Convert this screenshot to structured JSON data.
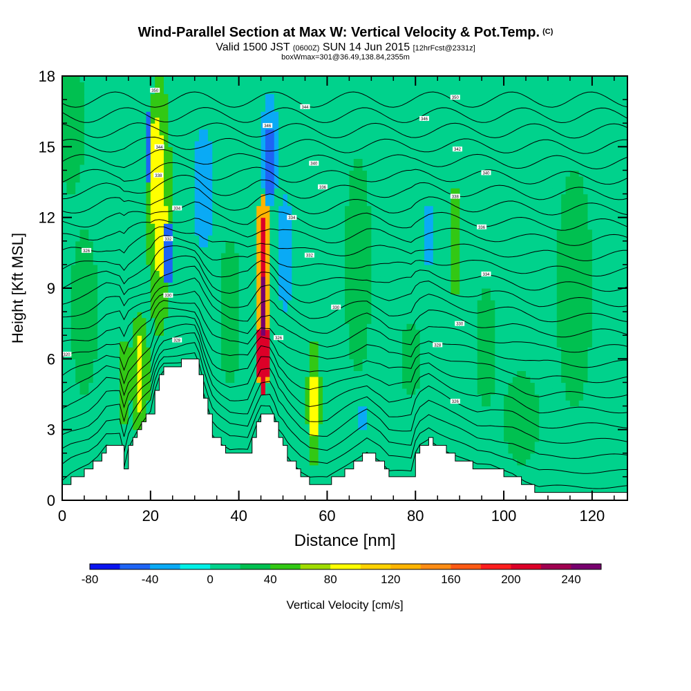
{
  "header": {
    "title": "Wind-Parallel Section at Max W: Vertical Velocity & Pot.Temp.",
    "copyright_mark": "(C)",
    "valid_prefix": "Valid 1500 JST",
    "valid_utc": "(0600Z)",
    "valid_date": "SUN 14 Jun 2015",
    "forecast": "[12hrFcst@2331z]",
    "box_info": "boxWmax=301@36.49,138.84,2355m"
  },
  "chart_data": {
    "type": "heatmap",
    "xlabel": "Distance [nm]",
    "ylabel": "Height [Kft MSL]",
    "xlim": [
      0,
      128
    ],
    "ylim": [
      0,
      18
    ],
    "x_ticks": [
      0,
      20,
      40,
      60,
      80,
      100,
      120
    ],
    "y_ticks": [
      0,
      3,
      6,
      9,
      12,
      15,
      18
    ],
    "colorbar": {
      "label": "Vertical Velocity [cm/s]",
      "min": -80,
      "max": 260,
      "step": 20,
      "tick_labels": [
        "-80",
        "-40",
        "0",
        "40",
        "80",
        "120",
        "160",
        "200",
        "240"
      ],
      "tick_values": [
        -80,
        -40,
        0,
        40,
        80,
        120,
        160,
        200,
        240
      ],
      "colors": [
        "#0a14f0",
        "#1e64f5",
        "#0aaaf5",
        "#00f0e6",
        "#00d28c",
        "#00c050",
        "#32c814",
        "#a0dc00",
        "#ffff00",
        "#ffd200",
        "#ffb400",
        "#ff8c14",
        "#ff5a14",
        "#ff1e1e",
        "#dc0028",
        "#a00050",
        "#78006e"
      ]
    },
    "background_value": 5,
    "terrain": [
      [
        0,
        0.6
      ],
      [
        2,
        0.9
      ],
      [
        6,
        1.3
      ],
      [
        8,
        1.7
      ],
      [
        10,
        2.3
      ],
      [
        13,
        2.3
      ],
      [
        14,
        1.3
      ],
      [
        15,
        2.2
      ],
      [
        16,
        2.6
      ],
      [
        18,
        3.3
      ],
      [
        20,
        3.8
      ],
      [
        21,
        4.8
      ],
      [
        22,
        5.4
      ],
      [
        23,
        5.7
      ],
      [
        28,
        5.9
      ],
      [
        30,
        5.9
      ],
      [
        31,
        5.3
      ],
      [
        32,
        4.3
      ],
      [
        33,
        3.5
      ],
      [
        34,
        2.8
      ],
      [
        35,
        2.5
      ],
      [
        36,
        2.3
      ],
      [
        38,
        2.0
      ],
      [
        42,
        2.0
      ],
      [
        44,
        3.2
      ],
      [
        45,
        3.7
      ],
      [
        47,
        3.7
      ],
      [
        48,
        3.2
      ],
      [
        49,
        2.5
      ],
      [
        50,
        2.2
      ],
      [
        51,
        1.8
      ],
      [
        52,
        1.5
      ],
      [
        54,
        1.0
      ],
      [
        56,
        0.7
      ],
      [
        60,
        0.7
      ],
      [
        62,
        1.0
      ],
      [
        64,
        1.3
      ],
      [
        66,
        1.6
      ],
      [
        69,
        2.0
      ],
      [
        72,
        1.5
      ],
      [
        74,
        1.0
      ],
      [
        79,
        1.0
      ],
      [
        80,
        1.9
      ],
      [
        81,
        2.3
      ],
      [
        83,
        2.6
      ],
      [
        85,
        2.3
      ],
      [
        88,
        1.9
      ],
      [
        91,
        1.6
      ],
      [
        94,
        1.3
      ],
      [
        97,
        1.3
      ],
      [
        102,
        1.0
      ],
      [
        105,
        0.6
      ],
      [
        108,
        0.3
      ],
      [
        112,
        0.3
      ],
      [
        120,
        0.3
      ],
      [
        123,
        0.3
      ]
    ],
    "features": [
      {
        "x": 45.5,
        "y": 8.7,
        "w": 120,
        "rx": 2.0,
        "ry": 4.3
      },
      {
        "x": 45.5,
        "y": 6.2,
        "w": 200,
        "rx": 1.2,
        "ry": 1.8
      },
      {
        "x": 45.5,
        "y": 9.8,
        "w": 200,
        "rx": 0.9,
        "ry": 2.2
      },
      {
        "x": 45.5,
        "y": 8.2,
        "w": 240,
        "rx": 0.6,
        "ry": 1.2
      },
      {
        "x": 21.3,
        "y": 13.8,
        "w": 80,
        "rx": 1.6,
        "ry": 2.4
      },
      {
        "x": 22.3,
        "y": 11.3,
        "w": 80,
        "rx": 1.5,
        "ry": 1.8
      },
      {
        "x": 22.0,
        "y": 12.5,
        "w": 40,
        "rx": 2.8,
        "ry": 5.5
      },
      {
        "x": 17.5,
        "y": 5.4,
        "w": 80,
        "rx": 1.0,
        "ry": 1.6
      },
      {
        "x": 17.5,
        "y": 5.4,
        "w": 40,
        "rx": 2.2,
        "ry": 2.6
      },
      {
        "x": 57.0,
        "y": 4.0,
        "w": 80,
        "rx": 0.9,
        "ry": 1.5
      },
      {
        "x": 57.0,
        "y": 4.2,
        "w": 40,
        "rx": 1.6,
        "ry": 2.8
      },
      {
        "x": 24.0,
        "y": 10.5,
        "w": -60,
        "rx": 0.8,
        "ry": 1.6
      },
      {
        "x": 19.5,
        "y": 15.0,
        "w": -60,
        "rx": 0.8,
        "ry": 1.4
      },
      {
        "x": 47.0,
        "y": 14.3,
        "w": -60,
        "rx": 1.0,
        "ry": 1.6
      },
      {
        "x": 47.0,
        "y": 14.8,
        "w": -40,
        "rx": 2.0,
        "ry": 2.5
      },
      {
        "x": 32.0,
        "y": 13.2,
        "w": -40,
        "rx": 2.5,
        "ry": 2.5
      },
      {
        "x": 50.5,
        "y": 10.5,
        "w": -40,
        "rx": 1.8,
        "ry": 2.4
      },
      {
        "x": 83.0,
        "y": 11.3,
        "w": -40,
        "rx": 1.2,
        "ry": 1.4
      },
      {
        "x": 68.0,
        "y": 3.5,
        "w": -40,
        "rx": 0.6,
        "ry": 1.0
      },
      {
        "x": 14.0,
        "y": 5.0,
        "w": 40,
        "rx": 1.3,
        "ry": 2.0
      },
      {
        "x": 89.0,
        "y": 11.0,
        "w": 40,
        "rx": 1.5,
        "ry": 2.5
      },
      {
        "x": 79.0,
        "y": 6.0,
        "w": 30,
        "rx": 2.5,
        "ry": 1.5
      },
      {
        "x": 116.0,
        "y": 9.0,
        "w": 20,
        "rx": 4.0,
        "ry": 5.0
      },
      {
        "x": 2.0,
        "y": 16.0,
        "w": 20,
        "rx": 3.0,
        "ry": 3.0
      },
      {
        "x": 5.0,
        "y": 8.0,
        "w": 20,
        "rx": 3.0,
        "ry": 3.5
      },
      {
        "x": 38.0,
        "y": 8.0,
        "w": 20,
        "rx": 2.5,
        "ry": 3.0
      },
      {
        "x": 67.0,
        "y": 10.0,
        "w": 20,
        "rx": 3.0,
        "ry": 4.5
      },
      {
        "x": 96.0,
        "y": 6.5,
        "w": 20,
        "rx": 2.5,
        "ry": 2.5
      },
      {
        "x": 104.0,
        "y": 3.5,
        "w": 20,
        "rx": 4.0,
        "ry": 2.0
      }
    ],
    "theta_contours": {
      "surface_value": 0.3,
      "top_value": 17.0,
      "count": 26
    },
    "contour_labels": [
      {
        "x": 1.0,
        "y": 6.2,
        "text": "320"
      },
      {
        "x": 5.5,
        "y": 10.6,
        "text": "326"
      },
      {
        "x": 21.0,
        "y": 17.4,
        "text": "350"
      },
      {
        "x": 22.0,
        "y": 15.0,
        "text": "344"
      },
      {
        "x": 21.8,
        "y": 13.8,
        "text": "338"
      },
      {
        "x": 26.0,
        "y": 12.4,
        "text": "334"
      },
      {
        "x": 24.0,
        "y": 11.1,
        "text": "332"
      },
      {
        "x": 24.0,
        "y": 8.7,
        "text": "330"
      },
      {
        "x": 26.0,
        "y": 6.8,
        "text": "328"
      },
      {
        "x": 46.5,
        "y": 15.9,
        "text": "346"
      },
      {
        "x": 55.0,
        "y": 16.7,
        "text": "344"
      },
      {
        "x": 57.0,
        "y": 14.3,
        "text": "340"
      },
      {
        "x": 59.0,
        "y": 13.3,
        "text": "336"
      },
      {
        "x": 52.0,
        "y": 12.0,
        "text": "334"
      },
      {
        "x": 56.0,
        "y": 10.4,
        "text": "332"
      },
      {
        "x": 62.0,
        "y": 8.2,
        "text": "330"
      },
      {
        "x": 49.0,
        "y": 6.9,
        "text": "326"
      },
      {
        "x": 89.0,
        "y": 17.1,
        "text": "350"
      },
      {
        "x": 82.0,
        "y": 16.2,
        "text": "346"
      },
      {
        "x": 89.5,
        "y": 14.9,
        "text": "342"
      },
      {
        "x": 96.0,
        "y": 13.9,
        "text": "340"
      },
      {
        "x": 89.0,
        "y": 12.9,
        "text": "338"
      },
      {
        "x": 95.0,
        "y": 11.6,
        "text": "336"
      },
      {
        "x": 96.0,
        "y": 9.6,
        "text": "334"
      },
      {
        "x": 90.0,
        "y": 7.5,
        "text": "330"
      },
      {
        "x": 85.0,
        "y": 6.6,
        "text": "328"
      },
      {
        "x": 89.0,
        "y": 4.2,
        "text": "326"
      }
    ]
  }
}
